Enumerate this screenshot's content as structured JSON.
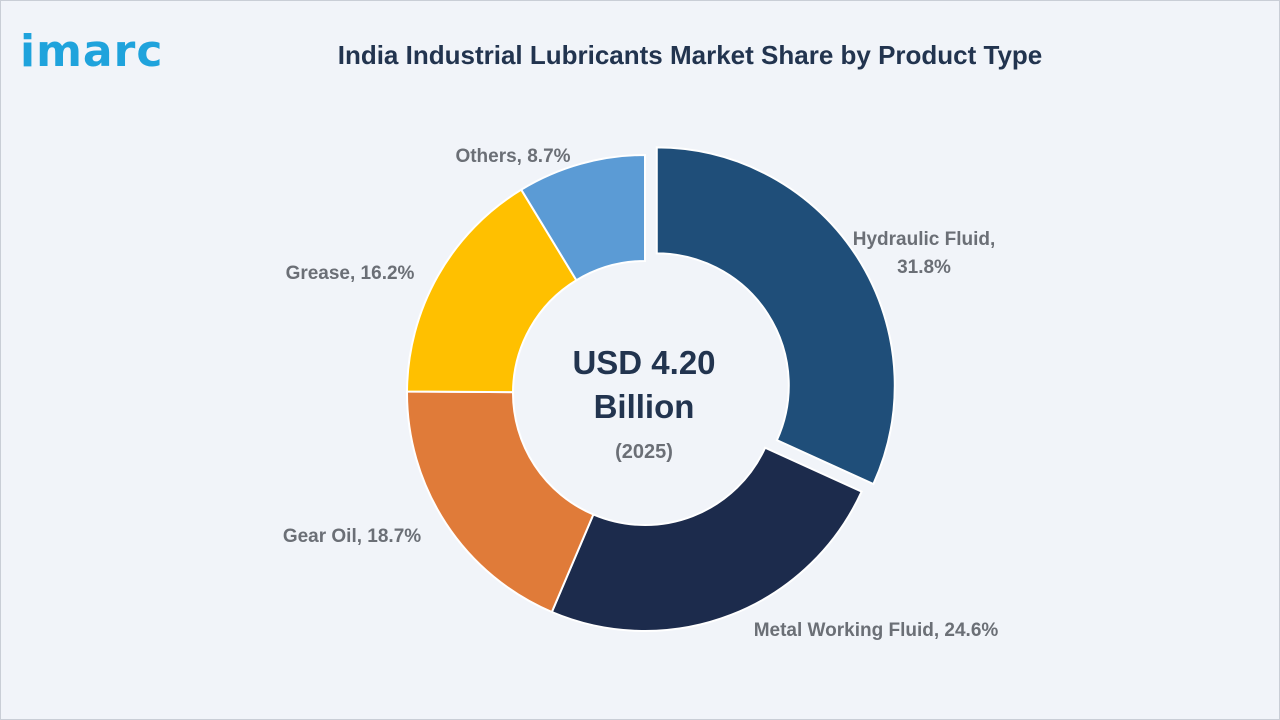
{
  "brand": {
    "logo_text": "imarc",
    "accent": "#1fa3dc"
  },
  "chart_data": {
    "type": "pie",
    "variant": "donut",
    "title": "India Industrial Lubricants Market Share by Product Type",
    "center_value": "USD 4.20",
    "center_unit": "Billion",
    "center_year": "(2025)",
    "slices": [
      {
        "label": "Hydraulic Fluid",
        "value": 31.8,
        "display": "Hydraulic Fluid,",
        "display2": "31.8%",
        "color": "#1f4e79",
        "exploded": true
      },
      {
        "label": "Metal Working Fluid",
        "value": 24.6,
        "display": "Metal Working Fluid, 24.6%",
        "display2": "",
        "color": "#1c2b4c",
        "exploded": false
      },
      {
        "label": "Gear Oil",
        "value": 18.7,
        "display": "Gear Oil, 18.7%",
        "display2": "",
        "color": "#e07b39",
        "exploded": false
      },
      {
        "label": "Grease",
        "value": 16.2,
        "display": "Grease, 16.2%",
        "display2": "",
        "color": "#ffc000",
        "exploded": false
      },
      {
        "label": "Others",
        "value": 8.7,
        "display": "Others, 8.7%",
        "display2": "",
        "color": "#5b9bd5",
        "exploded": false
      }
    ]
  }
}
